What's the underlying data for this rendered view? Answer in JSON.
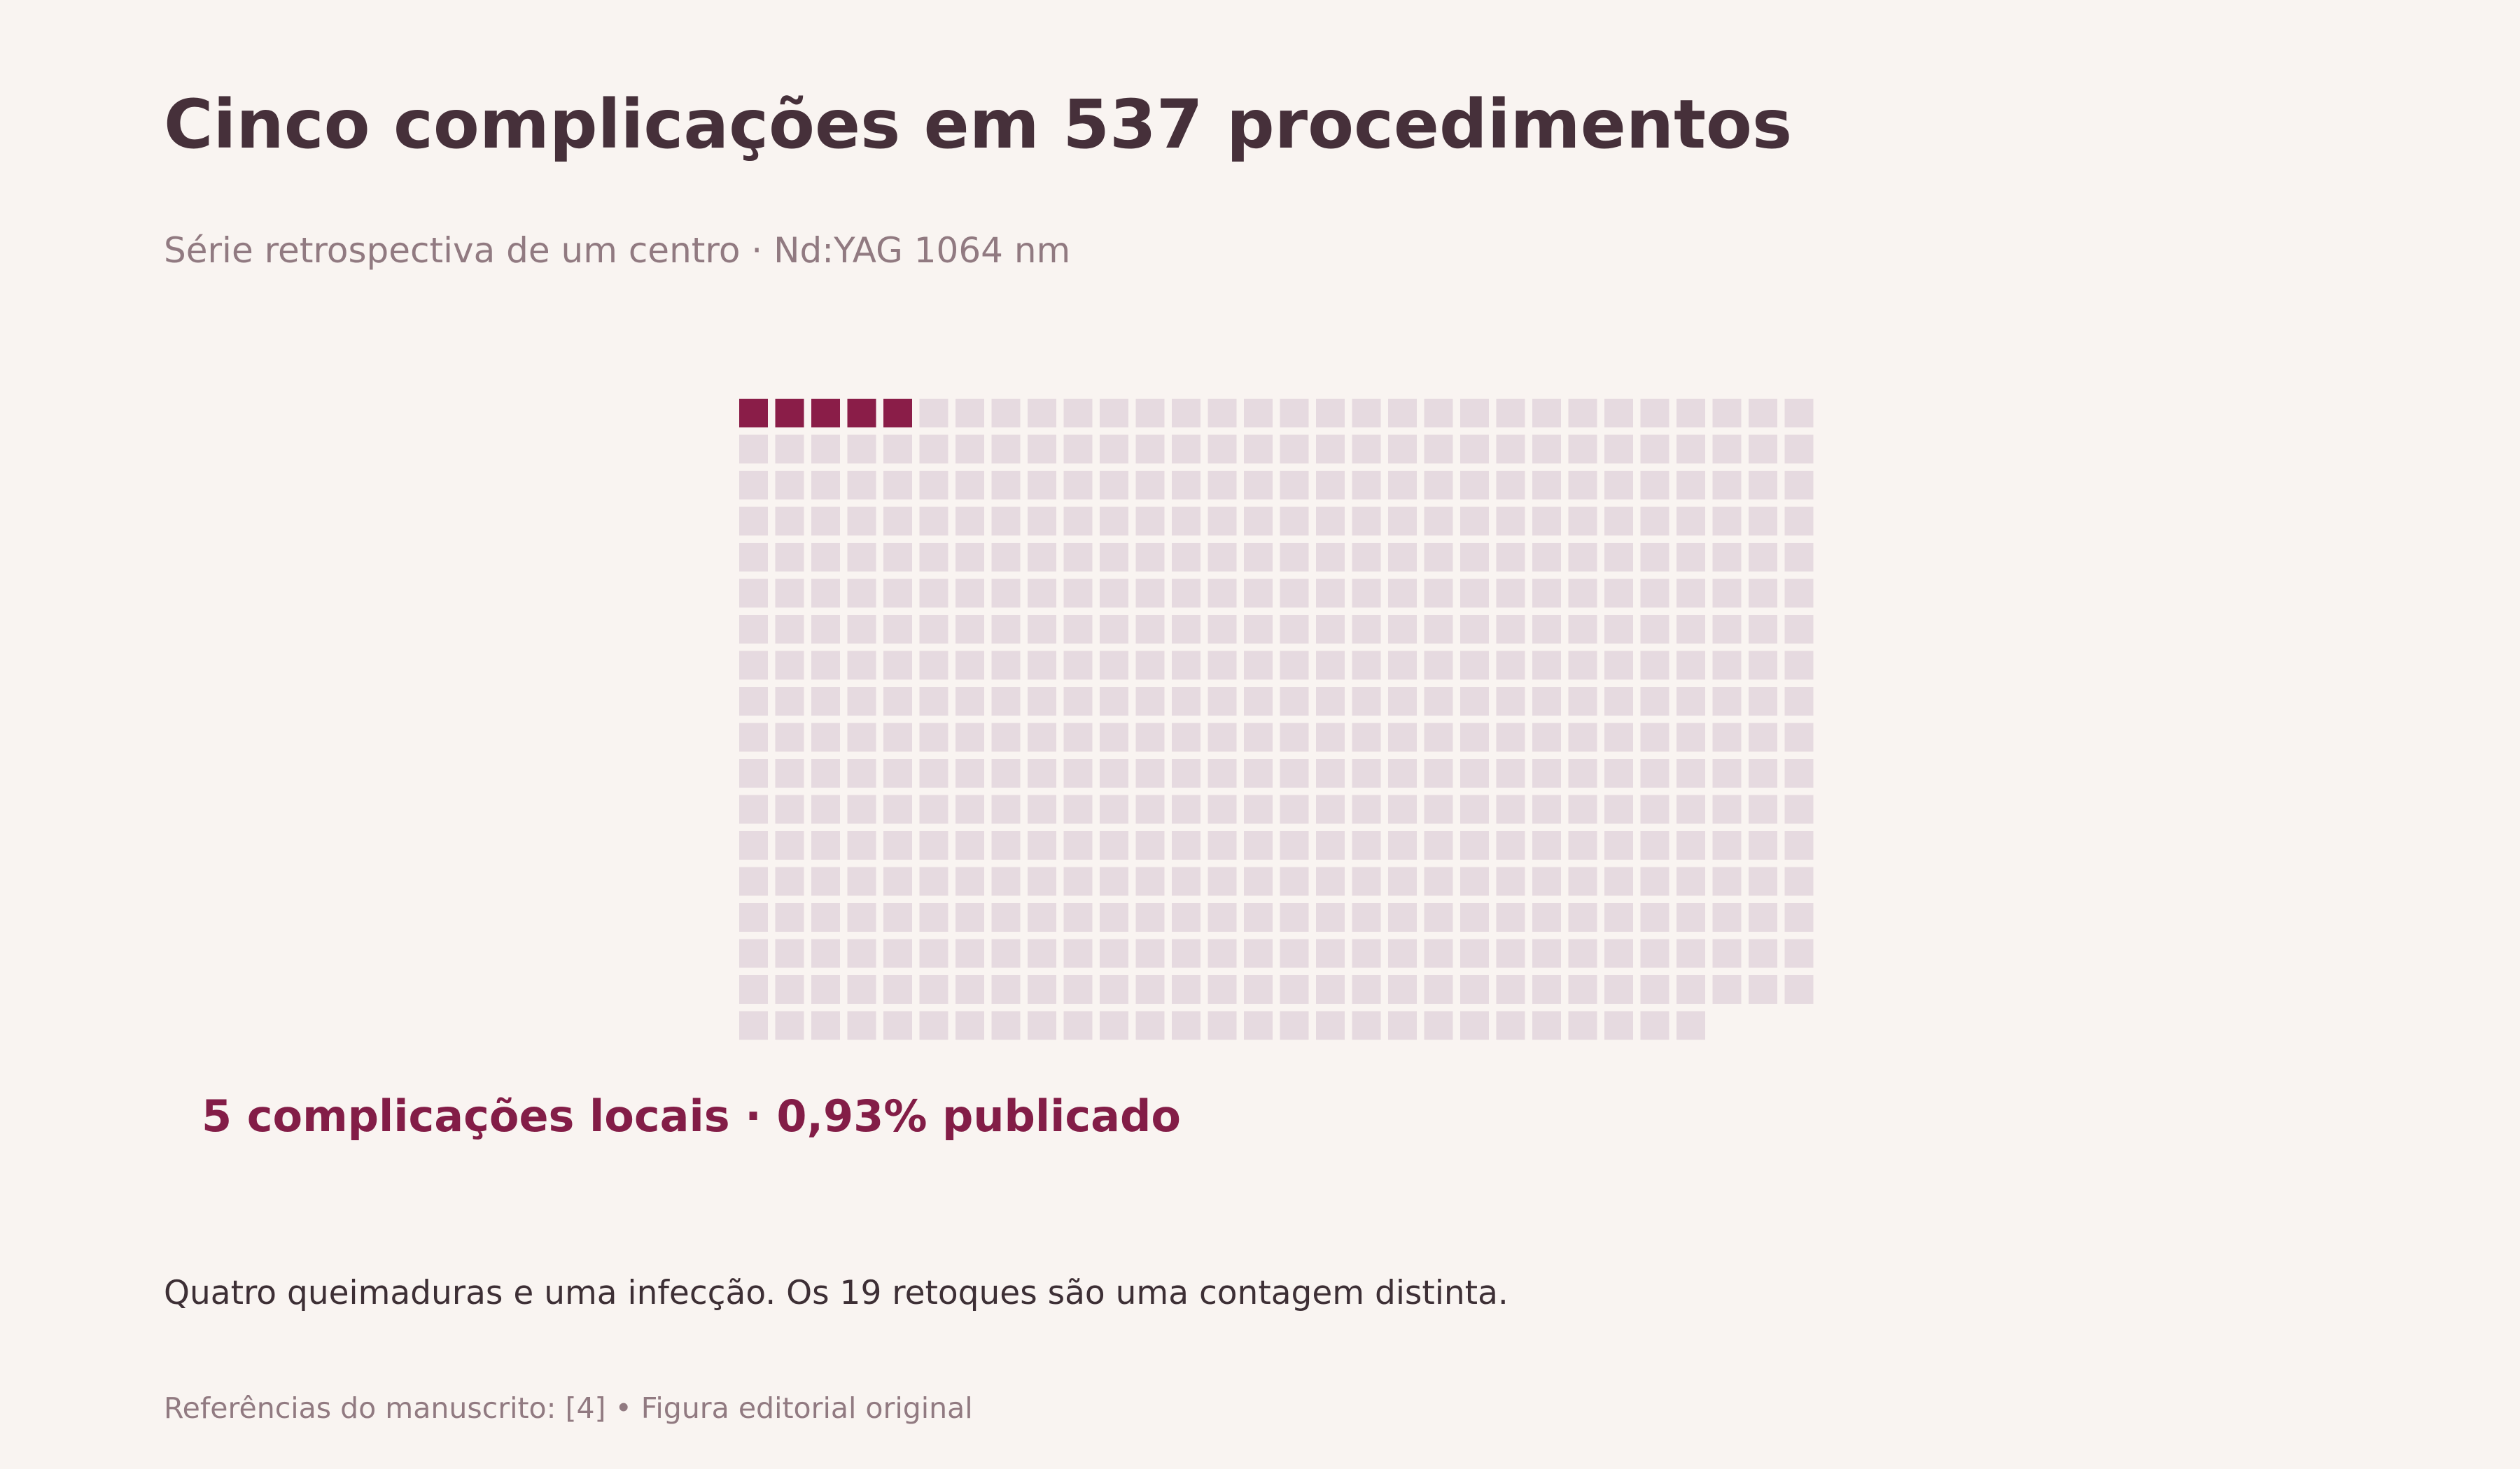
{
  "header": {
    "title": "Cinco complicações em 537 procedimentos",
    "subtitle": "Série retrospectiva de um centro · Nd:YAG 1064 nm"
  },
  "chart_data": {
    "type": "waffle",
    "total": 537,
    "highlighted": 5,
    "columns": 30,
    "colors": {
      "highlighted": "#8a1d48",
      "base": "#e6dae0"
    }
  },
  "annotation": {
    "highlight_label": "5 complicações locais · 0,93% publicado"
  },
  "footer": {
    "note": "Quatro queimaduras e uma infecção. Os 19 retoques são uma contagem distinta.",
    "source": "Referências do manuscrito: [4]  •  Figura editorial original"
  }
}
